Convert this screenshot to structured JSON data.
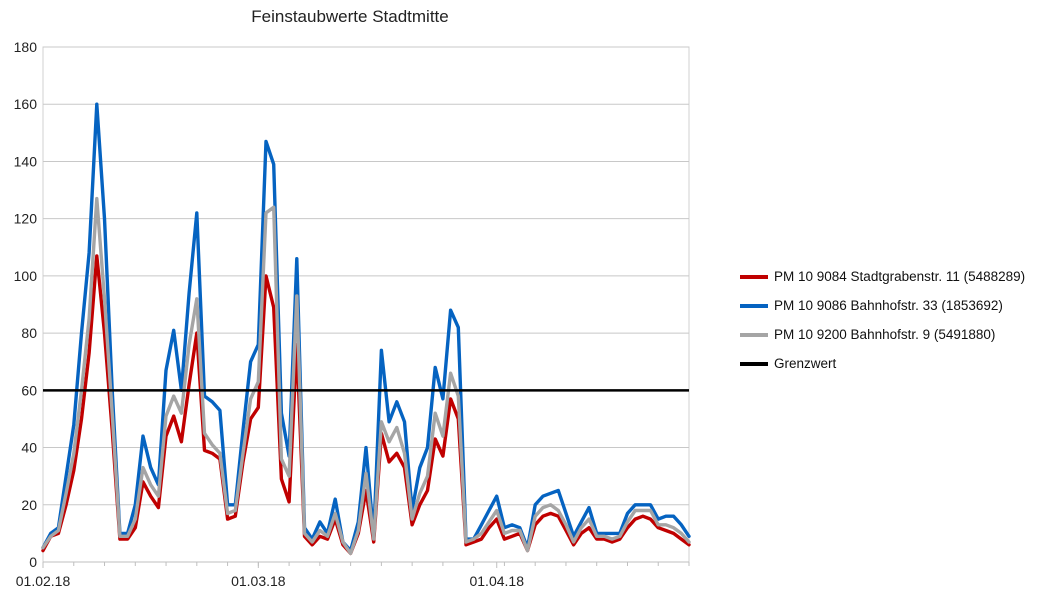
{
  "chart_data": {
    "type": "line",
    "title": "Feinstaubwerte Stadtmitte",
    "xlabel": "",
    "ylabel": "",
    "ylim": [
      0,
      180
    ],
    "yticks": [
      0,
      20,
      40,
      60,
      80,
      100,
      120,
      140,
      160,
      180
    ],
    "x_start_label": "01.02.18",
    "x_tick_labels": [
      "01.02.18",
      "01.03.18",
      "01.04.18"
    ],
    "grid": "horizontal",
    "legend_position": "right",
    "threshold": {
      "name": "Grenzwert",
      "value": 60,
      "color": "#000000"
    },
    "series": [
      {
        "name": "PM 10 9084 Stadtgrabenstr. 11 (5488289)",
        "color": "#C00000",
        "values": [
          4,
          9,
          10,
          20,
          32,
          50,
          73,
          107,
          80,
          46,
          8,
          8,
          12,
          28,
          23,
          19,
          44,
          51,
          42,
          62,
          80,
          39,
          38,
          36,
          15,
          16,
          35,
          50,
          54,
          100,
          89,
          29,
          21,
          76,
          9,
          6,
          9,
          8,
          15,
          6,
          3,
          10,
          25,
          7,
          45,
          35,
          38,
          33,
          13,
          20,
          25,
          43,
          37,
          57,
          50,
          6,
          7,
          8,
          12,
          15,
          8,
          9,
          10,
          4,
          13,
          16,
          17,
          16,
          11,
          6,
          10,
          12,
          8,
          8,
          7,
          8,
          12,
          15,
          16,
          15,
          12,
          11,
          10,
          8,
          6
        ]
      },
      {
        "name": "PM 10 9086 Bahnhofstr. 33 (1853692)",
        "color": "#0563C1",
        "values": [
          5,
          10,
          12,
          30,
          48,
          80,
          108,
          160,
          120,
          60,
          10,
          10,
          20,
          44,
          33,
          27,
          67,
          81,
          60,
          94,
          122,
          58,
          56,
          53,
          20,
          20,
          46,
          70,
          76,
          147,
          139,
          52,
          37,
          106,
          12,
          8,
          14,
          10,
          22,
          7,
          4,
          14,
          40,
          9,
          74,
          49,
          56,
          49,
          18,
          33,
          40,
          68,
          57,
          88,
          82,
          8,
          8,
          13,
          18,
          23,
          12,
          13,
          12,
          5,
          20,
          23,
          24,
          25,
          17,
          9,
          14,
          19,
          10,
          10,
          10,
          10,
          17,
          20,
          20,
          20,
          15,
          16,
          16,
          13,
          9
        ]
      },
      {
        "name": "PM 10 9200 Bahnhofstr. 9 (5491880)",
        "color": "#A5A5A5",
        "values": [
          5,
          9,
          11,
          24,
          38,
          60,
          85,
          127,
          92,
          52,
          9,
          9,
          15,
          33,
          27,
          23,
          51,
          58,
          52,
          76,
          92,
          45,
          41,
          38,
          17,
          18,
          38,
          57,
          63,
          122,
          124,
          36,
          30,
          93,
          10,
          7,
          11,
          9,
          17,
          7,
          3,
          11,
          31,
          8,
          49,
          42,
          47,
          38,
          15,
          24,
          30,
          52,
          44,
          66,
          58,
          7,
          8,
          10,
          14,
          18,
          10,
          11,
          11,
          4,
          16,
          19,
          20,
          18,
          13,
          7,
          12,
          15,
          9,
          9,
          8,
          9,
          14,
          18,
          18,
          18,
          13,
          13,
          12,
          10,
          7
        ]
      }
    ]
  }
}
